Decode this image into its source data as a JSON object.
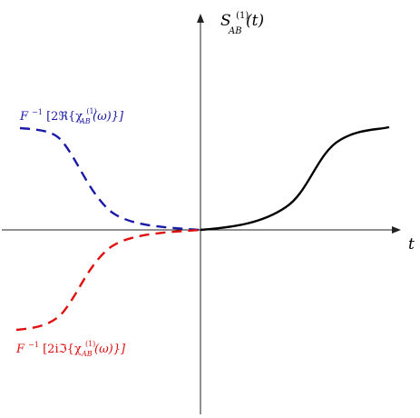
{
  "labels": {
    "y_axis": {
      "main": "S",
      "sup": "(1)",
      "sub": "AB",
      "arg": "(t)"
    },
    "x_axis": "t",
    "blue_curve": {
      "prefix": "F",
      "inv": "−1",
      "open": "[2ℜ{χ",
      "sup": "(1)",
      "sub": "AB",
      "close": "(ω)}]"
    },
    "red_curve": {
      "prefix": "F",
      "inv": "−1",
      "open": "[2iℑ{χ",
      "sup": "(1)",
      "sub": "AB",
      "close": "(ω)}]"
    }
  },
  "colors": {
    "axis": "#222222",
    "response": "#000000",
    "real_part": "#1a1aa8",
    "imag_part": "#e01010"
  }
}
